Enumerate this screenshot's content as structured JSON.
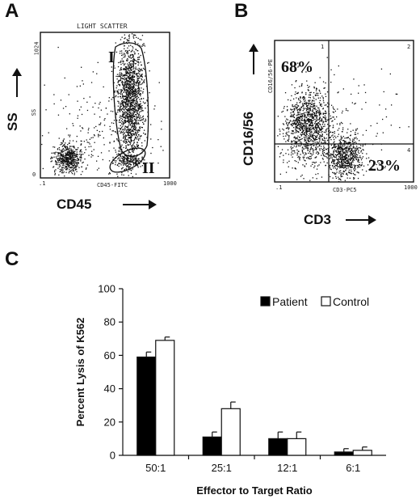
{
  "panel_a": {
    "letter": "A",
    "header": "LIGHT SCATTER",
    "y_top": "1024",
    "y_side": "SS",
    "y_bottom": "0",
    "x_left": ".1",
    "x_mid": "CD45-FITC",
    "x_right": "1000",
    "gate_1": "I",
    "gate_2": "II",
    "gate_tag": "A",
    "ylabel": "SS",
    "xlabel": "CD45"
  },
  "panel_b": {
    "letter": "B",
    "y_side": "CD16/56-PE",
    "x_left": ".1",
    "x_mid": "CD3-PC5",
    "x_right": "1000",
    "quad_1": "1",
    "quad_2": "2",
    "quad_4": "4",
    "pct_upper_left": "68%",
    "pct_lower_right": "23%",
    "ylabel": "CD16/56",
    "xlabel": "CD3"
  },
  "panel_c": {
    "letter": "C"
  },
  "chart_data": {
    "type": "bar",
    "title": "",
    "xlabel": "Effector to Target Ratio",
    "ylabel": "Percent Lysis of K562",
    "ylim": [
      0,
      100
    ],
    "yticks": [
      0,
      20,
      40,
      60,
      80,
      100
    ],
    "categories": [
      "50:1",
      "25:1",
      "12:1",
      "6:1"
    ],
    "legend_position": "top-right",
    "grid": false,
    "series": [
      {
        "name": "Patient",
        "color": "#000000",
        "values": [
          59,
          11,
          10,
          2
        ],
        "errors": [
          3,
          3,
          4,
          2
        ]
      },
      {
        "name": "Control",
        "color": "#ffffff",
        "values": [
          69,
          28,
          10,
          3
        ],
        "errors": [
          2,
          4,
          4,
          2
        ]
      }
    ]
  }
}
